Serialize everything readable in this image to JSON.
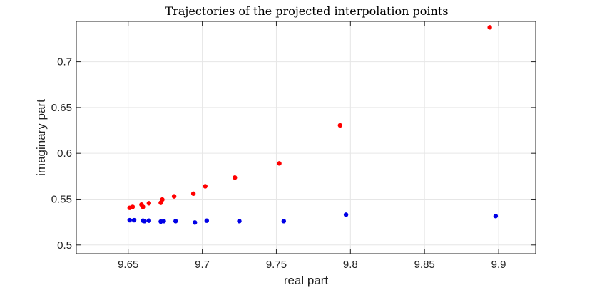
{
  "chart_data": {
    "type": "scatter",
    "title": "Trajectories of the projected interpolation points",
    "xlabel": "real part",
    "ylabel": "imaginary part",
    "xlim": [
      9.615,
      9.925
    ],
    "ylim": [
      0.4905,
      0.744
    ],
    "xticks": [
      9.65,
      9.7,
      9.75,
      9.8,
      9.85,
      9.9
    ],
    "xtick_labels": [
      "9.65",
      "9.7",
      "9.75",
      "9.8",
      "9.85",
      "9.9"
    ],
    "yticks": [
      0.5,
      0.55,
      0.6,
      0.65,
      0.7
    ],
    "ytick_labels": [
      "0.5",
      "0.55",
      "0.6",
      "0.65",
      "0.7"
    ],
    "grid": true,
    "series": [
      {
        "color": "#ff0000",
        "points": [
          {
            "x": 9.651,
            "y": 0.5405
          },
          {
            "x": 9.653,
            "y": 0.5415
          },
          {
            "x": 9.659,
            "y": 0.544
          },
          {
            "x": 9.66,
            "y": 0.5415
          },
          {
            "x": 9.664,
            "y": 0.5455
          },
          {
            "x": 9.672,
            "y": 0.546
          },
          {
            "x": 9.673,
            "y": 0.5495
          },
          {
            "x": 9.681,
            "y": 0.553
          },
          {
            "x": 9.694,
            "y": 0.556
          },
          {
            "x": 9.702,
            "y": 0.564
          },
          {
            "x": 9.722,
            "y": 0.5735
          },
          {
            "x": 9.752,
            "y": 0.589
          },
          {
            "x": 9.793,
            "y": 0.6305
          },
          {
            "x": 9.894,
            "y": 0.7375
          }
        ]
      },
      {
        "color": "#0000e6",
        "points": [
          {
            "x": 9.651,
            "y": 0.527
          },
          {
            "x": 9.654,
            "y": 0.527
          },
          {
            "x": 9.66,
            "y": 0.5265
          },
          {
            "x": 9.661,
            "y": 0.526
          },
          {
            "x": 9.664,
            "y": 0.5265
          },
          {
            "x": 9.672,
            "y": 0.5255
          },
          {
            "x": 9.674,
            "y": 0.526
          },
          {
            "x": 9.682,
            "y": 0.526
          },
          {
            "x": 9.695,
            "y": 0.5245
          },
          {
            "x": 9.703,
            "y": 0.5265
          },
          {
            "x": 9.725,
            "y": 0.526
          },
          {
            "x": 9.755,
            "y": 0.526
          },
          {
            "x": 9.797,
            "y": 0.533
          },
          {
            "x": 9.898,
            "y": 0.5315
          }
        ]
      }
    ]
  }
}
